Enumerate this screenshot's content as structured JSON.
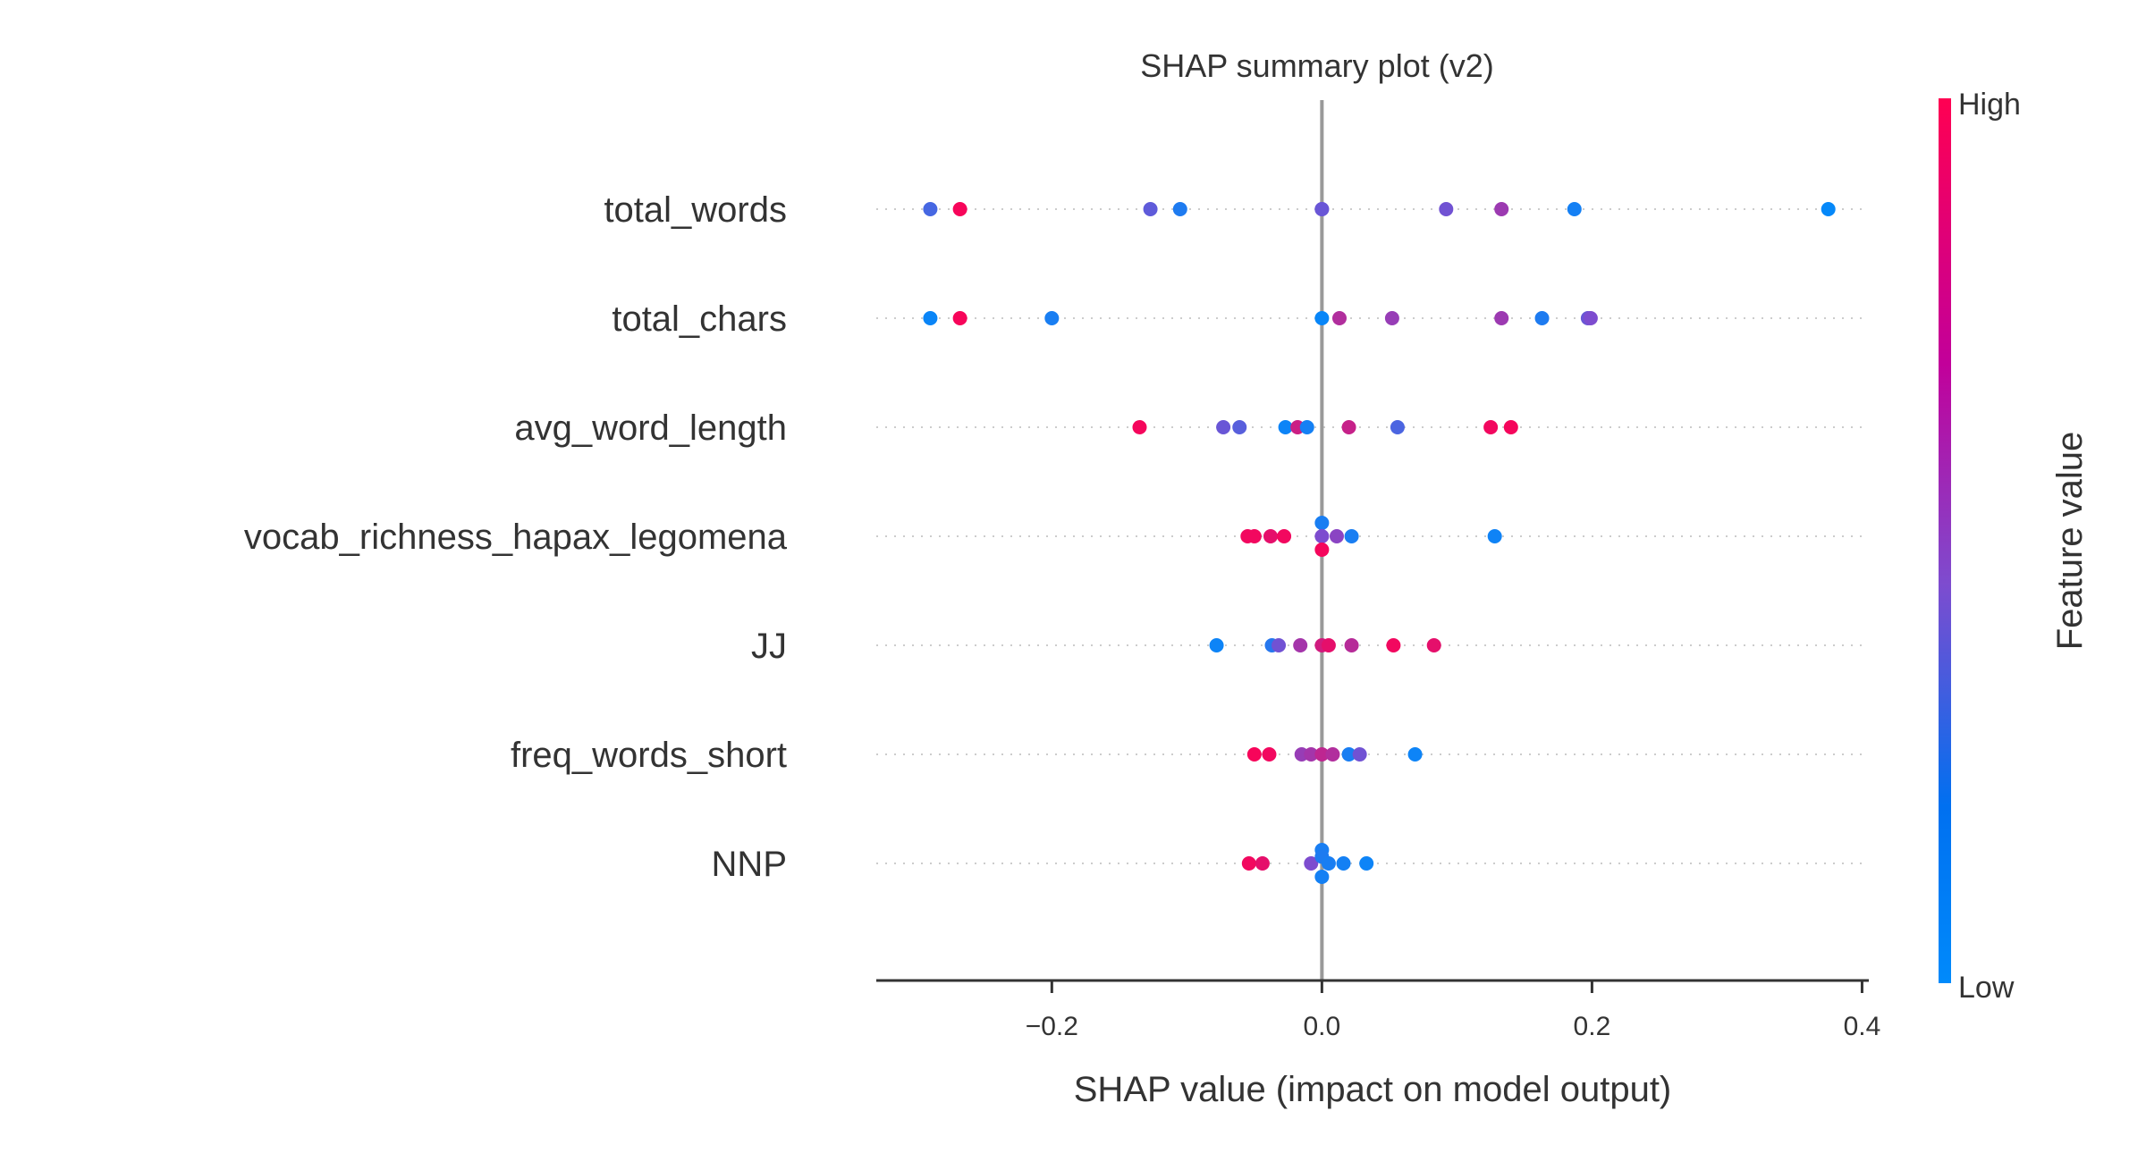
{
  "chart_data": {
    "type": "scatter",
    "title": "SHAP summary plot (v2)",
    "xlabel": "SHAP value (impact on model output)",
    "xlim": [
      -0.33,
      0.405
    ],
    "xticks": [
      -0.2,
      0.0,
      0.2,
      0.4
    ],
    "xtick_labels": [
      "−0.2",
      "0.0",
      "0.2",
      "0.4"
    ],
    "colorbar": {
      "label": "Feature value",
      "high_label": "High",
      "low_label": "Low",
      "low_color": "#008afb",
      "mid_color": "#7d4ccf",
      "high_color": "#ff0052"
    },
    "zero_line_color": "#999999",
    "features": [
      {
        "name": "total_words",
        "points": [
          {
            "x": -0.29,
            "v": 0.28
          },
          {
            "x": -0.268,
            "v": 0.97
          },
          {
            "x": -0.127,
            "v": 0.38
          },
          {
            "x": -0.105,
            "v": 0.12
          },
          {
            "x": 0.0,
            "v": 0.45
          },
          {
            "x": 0.0,
            "v": 0.42
          },
          {
            "x": 0.092,
            "v": 0.45
          },
          {
            "x": 0.133,
            "v": 0.62
          },
          {
            "x": 0.187,
            "v": 0.08
          },
          {
            "x": 0.375,
            "v": 0.02
          }
        ]
      },
      {
        "name": "total_chars",
        "points": [
          {
            "x": -0.29,
            "v": 0.04
          },
          {
            "x": -0.268,
            "v": 0.97
          },
          {
            "x": -0.2,
            "v": 0.1
          },
          {
            "x": 0.0,
            "v": 0.03
          },
          {
            "x": 0.013,
            "v": 0.7
          },
          {
            "x": 0.052,
            "v": 0.6
          },
          {
            "x": 0.133,
            "v": 0.62
          },
          {
            "x": 0.163,
            "v": 0.12
          },
          {
            "x": 0.197,
            "v": 0.42
          },
          {
            "x": 0.199,
            "v": 0.5
          }
        ]
      },
      {
        "name": "avg_word_length",
        "points": [
          {
            "x": -0.135,
            "v": 0.96
          },
          {
            "x": -0.073,
            "v": 0.42
          },
          {
            "x": -0.061,
            "v": 0.35
          },
          {
            "x": -0.027,
            "v": 0.05
          },
          {
            "x": -0.018,
            "v": 0.8
          },
          {
            "x": -0.011,
            "v": 0.08
          },
          {
            "x": 0.02,
            "v": 0.78
          },
          {
            "x": 0.056,
            "v": 0.3
          },
          {
            "x": 0.125,
            "v": 0.95
          },
          {
            "x": 0.14,
            "v": 0.96
          }
        ]
      },
      {
        "name": "vocab_richness_hapax_legomena",
        "points": [
          {
            "x": -0.055,
            "v": 0.95
          },
          {
            "x": -0.05,
            "v": 0.95
          },
          {
            "x": -0.038,
            "v": 0.9
          },
          {
            "x": -0.028,
            "v": 0.95
          },
          {
            "x": 0.0,
            "v": 0.1,
            "dy": -1
          },
          {
            "x": 0.0,
            "v": 0.5
          },
          {
            "x": 0.0,
            "v": 0.96,
            "dy": 1
          },
          {
            "x": 0.011,
            "v": 0.55
          },
          {
            "x": 0.022,
            "v": 0.1
          },
          {
            "x": 0.128,
            "v": 0.06
          }
        ]
      },
      {
        "name": "JJ",
        "points": [
          {
            "x": -0.078,
            "v": 0.05
          },
          {
            "x": -0.037,
            "v": 0.15
          },
          {
            "x": -0.032,
            "v": 0.45
          },
          {
            "x": -0.016,
            "v": 0.65
          },
          {
            "x": 0.0,
            "v": 0.82
          },
          {
            "x": 0.005,
            "v": 0.9
          },
          {
            "x": 0.022,
            "v": 0.72
          },
          {
            "x": 0.053,
            "v": 0.95
          },
          {
            "x": 0.083,
            "v": 0.9
          }
        ]
      },
      {
        "name": "freq_words_short",
        "points": [
          {
            "x": -0.05,
            "v": 0.97
          },
          {
            "x": -0.039,
            "v": 0.95
          },
          {
            "x": -0.015,
            "v": 0.6
          },
          {
            "x": -0.008,
            "v": 0.65
          },
          {
            "x": 0.0,
            "v": 0.75
          },
          {
            "x": 0.008,
            "v": 0.7
          },
          {
            "x": 0.02,
            "v": 0.1
          },
          {
            "x": 0.028,
            "v": 0.45
          },
          {
            "x": 0.069,
            "v": 0.05
          }
        ]
      },
      {
        "name": "NNP",
        "points": [
          {
            "x": -0.054,
            "v": 0.95
          },
          {
            "x": -0.044,
            "v": 0.9
          },
          {
            "x": -0.008,
            "v": 0.5
          },
          {
            "x": 0.0,
            "v": 0.1,
            "dy": -1
          },
          {
            "x": 0.0,
            "v": 0.12,
            "dy": -0.5
          },
          {
            "x": 0.005,
            "v": 0.1
          },
          {
            "x": 0.0,
            "v": 0.08,
            "dy": 1
          },
          {
            "x": 0.016,
            "v": 0.08
          },
          {
            "x": 0.033,
            "v": 0.05
          }
        ]
      }
    ]
  }
}
